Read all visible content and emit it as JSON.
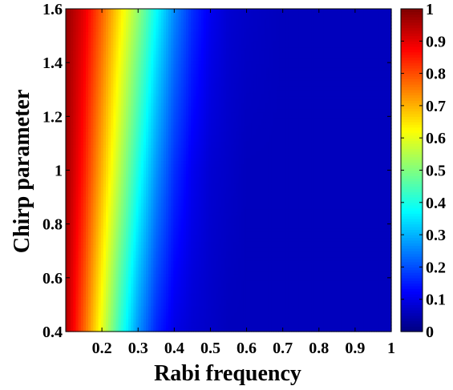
{
  "chart_data": {
    "type": "heatmap",
    "title": "",
    "xlabel": "Rabi frequency",
    "ylabel": "Chirp parameter",
    "xlim": [
      0.1,
      1.0
    ],
    "ylim": [
      0.4,
      1.6
    ],
    "x_ticks": [
      0.2,
      0.3,
      0.4,
      0.5,
      0.6,
      0.7,
      0.8,
      0.9,
      1.0
    ],
    "x_tick_labels": [
      "0.2",
      "0.3",
      "0.4",
      "0.5",
      "0.6",
      "0.7",
      "0.8",
      "0.9",
      "1"
    ],
    "y_ticks": [
      0.4,
      0.6,
      0.8,
      1.0,
      1.2,
      1.4,
      1.6
    ],
    "y_tick_labels": [
      "0.4",
      "0.6",
      "0.8",
      "1",
      "1.2",
      "1.4",
      "1.6"
    ],
    "colorbar": {
      "colormap": "jet",
      "range": [
        0,
        1
      ],
      "ticks": [
        0,
        0.1,
        0.2,
        0.3,
        0.4,
        0.5,
        0.6,
        0.7,
        0.8,
        0.9,
        1.0
      ],
      "tick_labels": [
        "0",
        "0.1",
        "0.2",
        "0.3",
        "0.4",
        "0.5",
        "0.6",
        "0.7",
        "0.8",
        "0.9",
        "1"
      ]
    },
    "grid": false,
    "z_samples": {
      "y": [
        0.4,
        1.0,
        1.6
      ],
      "x": [
        0.1,
        0.15,
        0.2,
        0.25,
        0.3,
        0.35,
        0.4,
        0.45,
        0.5,
        0.55,
        0.6,
        0.7,
        0.8,
        1.0
      ],
      "values": [
        [
          0.95,
          0.78,
          0.6,
          0.42,
          0.27,
          0.16,
          0.1,
          0.08,
          0.07,
          0.06,
          0.06,
          0.06,
          0.06,
          0.06
        ],
        [
          0.97,
          0.85,
          0.7,
          0.55,
          0.4,
          0.27,
          0.17,
          0.11,
          0.08,
          0.07,
          0.06,
          0.06,
          0.06,
          0.06
        ],
        [
          0.98,
          0.9,
          0.78,
          0.65,
          0.52,
          0.38,
          0.26,
          0.17,
          0.11,
          0.08,
          0.07,
          0.06,
          0.06,
          0.06
        ]
      ]
    }
  }
}
